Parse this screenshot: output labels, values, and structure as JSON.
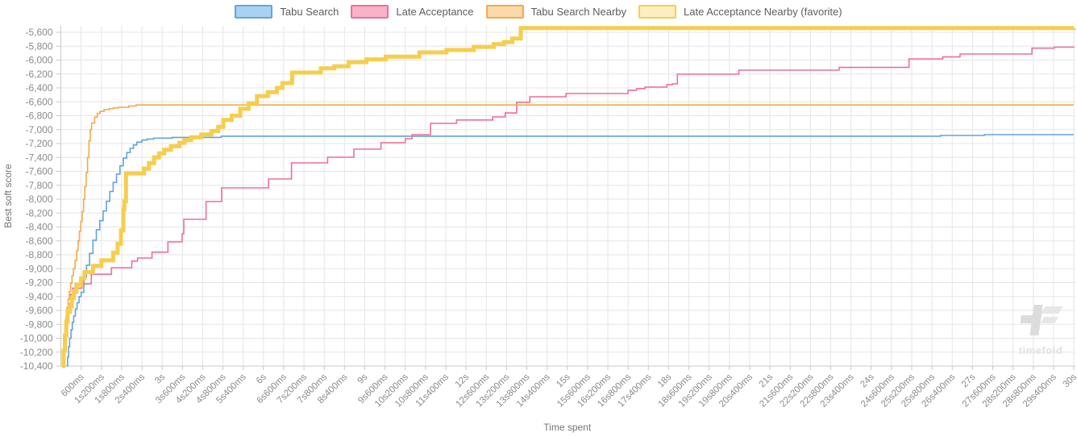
{
  "page": {
    "background": "#ffffff"
  },
  "legend": {
    "position": "top",
    "items": [
      {
        "label": "Tabu Search",
        "fill": "#a9d2f0",
        "border": "#61a4de"
      },
      {
        "label": "Late Acceptance",
        "fill": "#f8b3c9",
        "border": "#ee6f98"
      },
      {
        "label": "Tabu Search Nearby",
        "fill": "#fad9ab",
        "border": "#f4a94d"
      },
      {
        "label": "Late Acceptance Nearby (favorite)",
        "fill": "#fbeec0",
        "border": "#f6ce4d"
      }
    ]
  },
  "watermark": {
    "text": "timefold"
  },
  "colors": {
    "grid": "#e5e5e5",
    "axis_line": "#c9c9c9",
    "tick_text": "#8a8a8a",
    "axis_title_text": "#757575",
    "watermark_gray": "#e2e2e2"
  },
  "chart_data": {
    "type": "line",
    "line_style": "step-after",
    "title": "",
    "xlabel": "Time spent",
    "ylabel": "Best soft score",
    "grid": true,
    "legend_position": "top",
    "xlim_ms": [
      0,
      30000
    ],
    "ylim": [
      -10400,
      -5480
    ],
    "x_ticks": {
      "values_ms": [
        600,
        1200,
        1800,
        2400,
        3000,
        3600,
        4200,
        4800,
        5400,
        6000,
        6600,
        7200,
        7800,
        8400,
        9000,
        9600,
        10200,
        10800,
        11400,
        12000,
        12600,
        13200,
        13800,
        14400,
        15000,
        15600,
        16200,
        16800,
        17400,
        18000,
        18600,
        19200,
        19800,
        20400,
        21000,
        21600,
        22200,
        22800,
        23400,
        24000,
        24600,
        25200,
        25800,
        26400,
        27000,
        27600,
        28200,
        28800,
        29400,
        30000
      ],
      "labels": [
        "600ms",
        "1s200ms",
        "1s800ms",
        "2s400ms",
        "3s",
        "3s600ms",
        "4s200ms",
        "4s800ms",
        "5s400ms",
        "6s",
        "6s600ms",
        "7s200ms",
        "7s800ms",
        "8s400ms",
        "9s",
        "9s600ms",
        "10s200ms",
        "10s800ms",
        "11s400ms",
        "12s",
        "12s600ms",
        "13s200ms",
        "13s800ms",
        "14s400ms",
        "15s",
        "15s600ms",
        "16s200ms",
        "16s800ms",
        "17s400ms",
        "18s",
        "18s600ms",
        "19s200ms",
        "19s800ms",
        "20s400ms",
        "21s",
        "21s600ms",
        "22s200ms",
        "22s800ms",
        "23s400ms",
        "24s",
        "24s600ms",
        "25s200ms",
        "25s800ms",
        "26s400ms",
        "27s",
        "27s600ms",
        "28s200ms",
        "28s800ms",
        "29s400ms",
        "30s"
      ]
    },
    "y_ticks": {
      "values": [
        -5600,
        -5800,
        -6000,
        -6200,
        -6400,
        -6600,
        -6800,
        -7000,
        -7200,
        -7400,
        -7600,
        -7800,
        -8000,
        -8200,
        -8400,
        -8600,
        -8800,
        -9000,
        -9200,
        -9400,
        -9600,
        -9800,
        -10000,
        -10200,
        -10400
      ],
      "labels": [
        "-5,600",
        "-5,800",
        "-6,000",
        "-6,200",
        "-6,400",
        "-6,600",
        "-6,800",
        "-7,000",
        "-7,200",
        "-7,400",
        "-7,600",
        "-7,800",
        "-8,000",
        "-8,200",
        "-8,400",
        "-8,600",
        "-8,800",
        "-9,000",
        "-9,200",
        "-9,400",
        "-9,600",
        "-9,800",
        "-10,000",
        "-10,200",
        "-10,400"
      ]
    },
    "series": [
      {
        "name": "Tabu Search",
        "color": "#61a4de",
        "width": 1.6,
        "favorite": false,
        "points": [
          [
            170,
            -10400
          ],
          [
            200,
            -10270
          ],
          [
            230,
            -10120
          ],
          [
            260,
            -10000
          ],
          [
            300,
            -9880
          ],
          [
            340,
            -9770
          ],
          [
            380,
            -9680
          ],
          [
            430,
            -9580
          ],
          [
            480,
            -9490
          ],
          [
            540,
            -9400
          ],
          [
            600,
            -9340
          ],
          [
            680,
            -9120
          ],
          [
            760,
            -8950
          ],
          [
            850,
            -8780
          ],
          [
            950,
            -8590
          ],
          [
            1050,
            -8440
          ],
          [
            1150,
            -8310
          ],
          [
            1250,
            -8170
          ],
          [
            1350,
            -8030
          ],
          [
            1450,
            -7890
          ],
          [
            1550,
            -7760
          ],
          [
            1650,
            -7640
          ],
          [
            1750,
            -7520
          ],
          [
            1850,
            -7410
          ],
          [
            1950,
            -7330
          ],
          [
            2050,
            -7270
          ],
          [
            2150,
            -7220
          ],
          [
            2250,
            -7180
          ],
          [
            2400,
            -7150
          ],
          [
            2550,
            -7135
          ],
          [
            2750,
            -7122
          ],
          [
            3300,
            -7112
          ],
          [
            4750,
            -7094
          ],
          [
            26050,
            -7084
          ],
          [
            27350,
            -7072
          ],
          [
            30000,
            -7072
          ]
        ]
      },
      {
        "name": "Late Acceptance",
        "color": "#ee6f98",
        "width": 1.6,
        "favorite": false,
        "points": [
          [
            60,
            -10400
          ],
          [
            100,
            -10090
          ],
          [
            140,
            -9860
          ],
          [
            190,
            -9660
          ],
          [
            240,
            -9510
          ],
          [
            290,
            -9370
          ],
          [
            350,
            -9280
          ],
          [
            620,
            -9218
          ],
          [
            900,
            -9080
          ],
          [
            1500,
            -8985
          ],
          [
            2100,
            -8890
          ],
          [
            2270,
            -8846
          ],
          [
            2700,
            -8762
          ],
          [
            3170,
            -8614
          ],
          [
            3590,
            -8498
          ],
          [
            3640,
            -8290
          ],
          [
            4300,
            -8035
          ],
          [
            4760,
            -7838
          ],
          [
            6150,
            -7710
          ],
          [
            6830,
            -7478
          ],
          [
            7900,
            -7397
          ],
          [
            8680,
            -7281
          ],
          [
            9480,
            -7188
          ],
          [
            10200,
            -7130
          ],
          [
            10400,
            -7072
          ],
          [
            10950,
            -6910
          ],
          [
            11720,
            -6862
          ],
          [
            12790,
            -6817
          ],
          [
            13160,
            -6760
          ],
          [
            13500,
            -6608
          ],
          [
            13890,
            -6527
          ],
          [
            14960,
            -6481
          ],
          [
            16800,
            -6434
          ],
          [
            17050,
            -6411
          ],
          [
            17300,
            -6388
          ],
          [
            17950,
            -6353
          ],
          [
            18120,
            -6342
          ],
          [
            18260,
            -6203
          ],
          [
            20080,
            -6145
          ],
          [
            23050,
            -6105
          ],
          [
            25120,
            -5983
          ],
          [
            26120,
            -5955
          ],
          [
            26630,
            -5913
          ],
          [
            28760,
            -5828
          ],
          [
            29420,
            -5815
          ],
          [
            30000,
            -5806
          ]
        ]
      },
      {
        "name": "Tabu Search Nearby",
        "color": "#f4a94d",
        "width": 1.6,
        "favorite": false,
        "points": [
          [
            30,
            -10400
          ],
          [
            60,
            -10230
          ],
          [
            90,
            -10040
          ],
          [
            120,
            -9860
          ],
          [
            150,
            -9700
          ],
          [
            180,
            -9560
          ],
          [
            215,
            -9440
          ],
          [
            250,
            -9330
          ],
          [
            290,
            -9210
          ],
          [
            330,
            -9100
          ],
          [
            370,
            -9000
          ],
          [
            420,
            -8880
          ],
          [
            470,
            -8740
          ],
          [
            510,
            -8600
          ],
          [
            550,
            -8460
          ],
          [
            590,
            -8320
          ],
          [
            630,
            -8180
          ],
          [
            670,
            -8000
          ],
          [
            710,
            -7820
          ],
          [
            750,
            -7620
          ],
          [
            790,
            -7400
          ],
          [
            830,
            -7160
          ],
          [
            870,
            -7000
          ],
          [
            910,
            -6905
          ],
          [
            1000,
            -6820
          ],
          [
            1080,
            -6768
          ],
          [
            1160,
            -6738
          ],
          [
            1280,
            -6712
          ],
          [
            1440,
            -6698
          ],
          [
            1560,
            -6688
          ],
          [
            1710,
            -6678
          ],
          [
            2010,
            -6660
          ],
          [
            2230,
            -6646
          ],
          [
            30000,
            -6646
          ]
        ]
      },
      {
        "name": "Late Acceptance Nearby (favorite)",
        "color": "#f6ce4d",
        "width": 5,
        "favorite": true,
        "points": [
          [
            25,
            -10400
          ],
          [
            80,
            -10180
          ],
          [
            120,
            -9960
          ],
          [
            160,
            -9760
          ],
          [
            200,
            -9620
          ],
          [
            270,
            -9540
          ],
          [
            330,
            -9420
          ],
          [
            390,
            -9330
          ],
          [
            460,
            -9230
          ],
          [
            600,
            -9140
          ],
          [
            700,
            -9050
          ],
          [
            950,
            -8960
          ],
          [
            1200,
            -8880
          ],
          [
            1550,
            -8770
          ],
          [
            1680,
            -8640
          ],
          [
            1780,
            -8450
          ],
          [
            1850,
            -8150
          ],
          [
            1880,
            -8030
          ],
          [
            1930,
            -7630
          ],
          [
            2460,
            -7560
          ],
          [
            2610,
            -7480
          ],
          [
            2760,
            -7400
          ],
          [
            2910,
            -7340
          ],
          [
            3060,
            -7290
          ],
          [
            3260,
            -7240
          ],
          [
            3510,
            -7190
          ],
          [
            3660,
            -7150
          ],
          [
            3860,
            -7110
          ],
          [
            4160,
            -7070
          ],
          [
            4460,
            -7020
          ],
          [
            4660,
            -6960
          ],
          [
            4810,
            -6860
          ],
          [
            5060,
            -6800
          ],
          [
            5310,
            -6700
          ],
          [
            5560,
            -6620
          ],
          [
            5810,
            -6520
          ],
          [
            6130,
            -6460
          ],
          [
            6400,
            -6400
          ],
          [
            6560,
            -6330
          ],
          [
            6850,
            -6180
          ],
          [
            7700,
            -6120
          ],
          [
            8100,
            -6090
          ],
          [
            8520,
            -6030
          ],
          [
            9050,
            -5990
          ],
          [
            9620,
            -5950
          ],
          [
            10620,
            -5890
          ],
          [
            11420,
            -5855
          ],
          [
            12230,
            -5810
          ],
          [
            12820,
            -5770
          ],
          [
            13120,
            -5740
          ],
          [
            13370,
            -5690
          ],
          [
            13620,
            -5540
          ],
          [
            30000,
            -5538
          ]
        ]
      }
    ]
  }
}
